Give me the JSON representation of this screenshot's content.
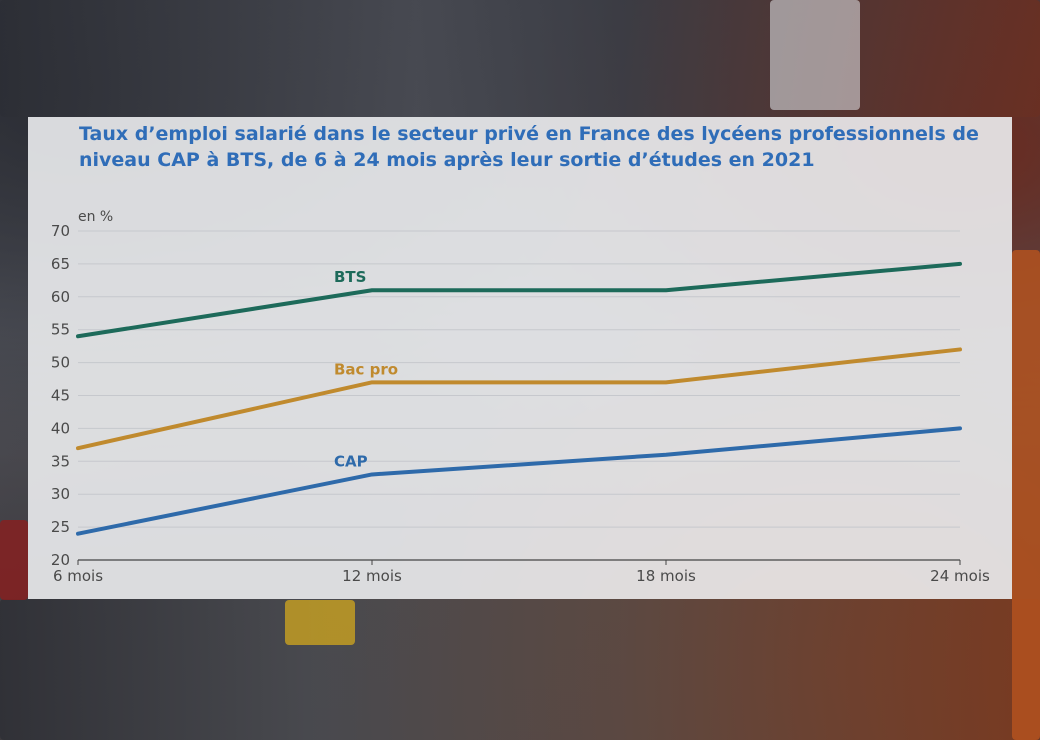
{
  "chart_data": {
    "type": "line",
    "title": "Taux d’emploi salarié dans le secteur privé en France des lycéens professionnels de niveau CAP à BTS, de 6 à 24 mois après leur sortie d’études en 2021",
    "xlabel": "",
    "ylabel": "en %",
    "categories": [
      "6 mois",
      "12 mois",
      "18 mois",
      "24 mois"
    ],
    "ylim": [
      20,
      70
    ],
    "yticks": [
      20,
      25,
      30,
      35,
      40,
      45,
      50,
      55,
      60,
      65,
      70
    ],
    "grid": true,
    "series": [
      {
        "name": "BTS",
        "color": "#1d6a5a",
        "values": [
          54,
          61,
          61,
          65
        ]
      },
      {
        "name": "Bac pro",
        "color": "#c08a2e",
        "values": [
          37,
          47,
          47,
          52
        ]
      },
      {
        "name": "CAP",
        "color": "#2e6aaa",
        "values": [
          24,
          33,
          36,
          40
        ]
      }
    ]
  }
}
